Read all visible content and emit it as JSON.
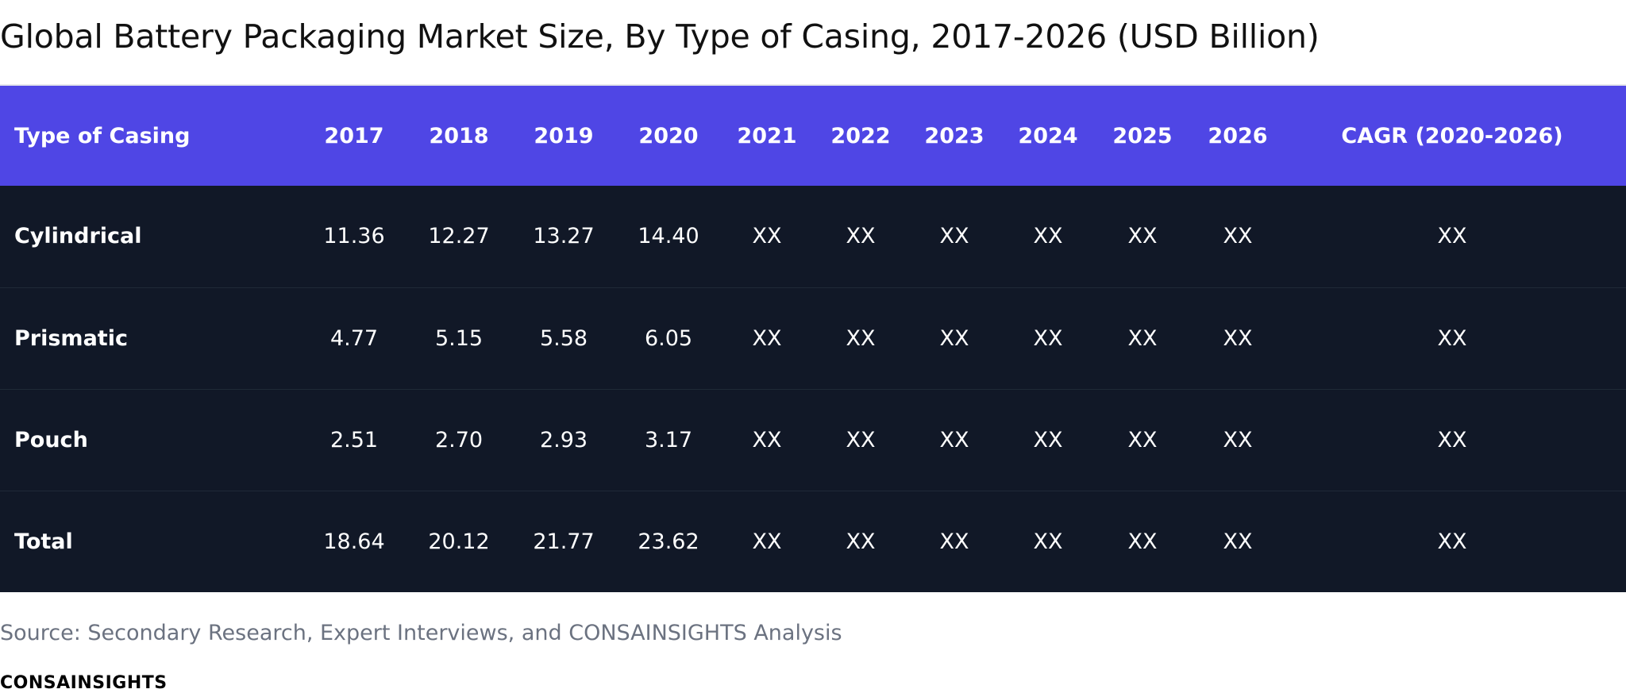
{
  "chart_data": {
    "type": "table",
    "title": "Global Battery Packaging Market Size, By Type of Casing, 2017-2026 (USD Billion)",
    "columns": [
      "Type of Casing",
      "2017",
      "2018",
      "2019",
      "2020",
      "2021",
      "2022",
      "2023",
      "2024",
      "2025",
      "2026",
      "CAGR (2020-2026)"
    ],
    "rows": [
      {
        "label": "Cylindrical",
        "values": [
          "11.36",
          "12.27",
          "13.27",
          "14.40",
          "XX",
          "XX",
          "XX",
          "XX",
          "XX",
          "XX",
          "XX"
        ]
      },
      {
        "label": "Prismatic",
        "values": [
          "4.77",
          "5.15",
          "5.58",
          "6.05",
          "XX",
          "XX",
          "XX",
          "XX",
          "XX",
          "XX",
          "XX"
        ]
      },
      {
        "label": "Pouch",
        "values": [
          "2.51",
          "2.70",
          "2.93",
          "3.17",
          "XX",
          "XX",
          "XX",
          "XX",
          "XX",
          "XX",
          "XX"
        ]
      },
      {
        "label": "Total",
        "values": [
          "18.64",
          "20.12",
          "21.77",
          "23.62",
          "XX",
          "XX",
          "XX",
          "XX",
          "XX",
          "XX",
          "XX"
        ]
      }
    ]
  },
  "footer": {
    "source": "Source: Secondary Research, Expert Interviews, and CONSAINSIGHTS Analysis",
    "brand": "CONSAINSIGHTS"
  },
  "colors": {
    "header_bg": "#4f46e5",
    "body_bg": "#111827",
    "text_on_dark": "#ffffff",
    "source_text": "#6b7280"
  }
}
